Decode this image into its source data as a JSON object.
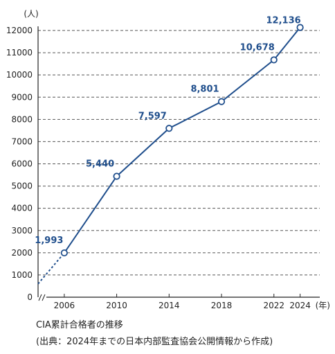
{
  "chart_data": {
    "type": "line",
    "x": [
      2006,
      2010,
      2014,
      2018,
      2022,
      2024
    ],
    "series": [
      {
        "values": [
          1993,
          5440,
          7597,
          8801,
          10678,
          12136
        ],
        "labels": [
          "1,993",
          "5,440",
          "7,597",
          "8,801",
          "10,678",
          "12,136"
        ]
      }
    ],
    "ylim": [
      0,
      12000
    ],
    "yticks": [
      0,
      1000,
      2000,
      3000,
      4000,
      5000,
      6000,
      7000,
      8000,
      9000,
      10000,
      11000,
      12000
    ],
    "xticks": [
      "2006",
      "2010",
      "2014",
      "2018",
      "2022",
      "2024"
    ],
    "ylabel": "(人)",
    "xlabel": "(年)",
    "grid": "horizontal-dashed",
    "line_color": "#1f4e8c",
    "grid_color": "#555555"
  },
  "caption": {
    "line1": "CIA累計合格者の推移",
    "line2": "(出典：2024年までの日本内部監査協会公開情報から作成)"
  }
}
